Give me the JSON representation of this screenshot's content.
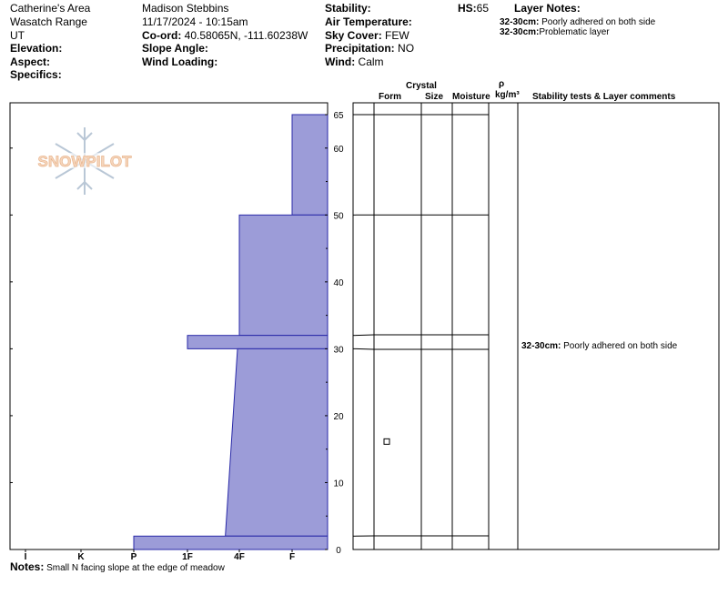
{
  "header": {
    "location": "Catherine's Area",
    "range": "Wasatch Range",
    "state": "UT",
    "elevation_label": "Elevation:",
    "aspect_label": "Aspect:",
    "specifics_label": "Specifics:",
    "observer": "Madison Stebbins",
    "datetime": "11/17/2024 - 10:15am",
    "coord_label": "Co-ord:",
    "coord_value": " 40.58065N, -111.60238W",
    "slope_label": "Slope Angle:",
    "wind_loading_label": "Wind Loading:",
    "stability_label": "Stability:",
    "air_temp_label": "Air Temperature:",
    "sky_label": "Sky Cover:",
    "sky_value": " FEW",
    "precip_label": "Precipitation:",
    "precip_value": " NO",
    "wind_label": "Wind:",
    "wind_value": "  Calm",
    "hs_label": "HS:",
    "hs_value": "65",
    "layer_notes_label": "Layer Notes:",
    "layer_notes": [
      {
        "range": "32-30cm:",
        "text": " Poorly adhered on both side"
      },
      {
        "range": "32-30cm:",
        "text": "Problematic layer"
      }
    ]
  },
  "logo": {
    "text": "SNOWPILOT",
    "icon": "snowflake-icon"
  },
  "table_headers": {
    "crystal": "Crystal",
    "form": "Form",
    "size": "Size",
    "moisture": "Moisture",
    "rho": "ρ",
    "density": "kg/m³",
    "stability": "Stability tests & Layer comments"
  },
  "layer_comment": {
    "range": "32-30cm:",
    "text": " Poorly adhered on both side"
  },
  "notes_label": "Notes:",
  "notes_text": " Small N facing slope at the edge of meadow",
  "colors": {
    "hardness_fill": "#9c9cd8",
    "hardness_stroke": "#2a2aa8"
  },
  "chart_data": {
    "type": "area",
    "x_categories": [
      "I",
      "K",
      "P",
      "1F",
      "4F",
      "F"
    ],
    "y_ticks": [
      0,
      10,
      20,
      30,
      40,
      50,
      60,
      65
    ],
    "ylim": [
      0,
      65
    ],
    "layers": [
      {
        "top_cm": 65,
        "bottom_cm": 50,
        "hardness": "F"
      },
      {
        "top_cm": 50,
        "bottom_cm": 32,
        "hardness": "4F"
      },
      {
        "top_cm": 32,
        "bottom_cm": 30,
        "hardness": "1F-F"
      },
      {
        "top_cm": 30,
        "bottom_cm": 2,
        "hardness": "4F- to 4F"
      },
      {
        "top_cm": 2,
        "bottom_cm": 0,
        "hardness": "P"
      }
    ],
    "layer_boundaries_cm": [
      65,
      50,
      32,
      30,
      2
    ],
    "grain_form_symbol_height_cm": 16
  }
}
